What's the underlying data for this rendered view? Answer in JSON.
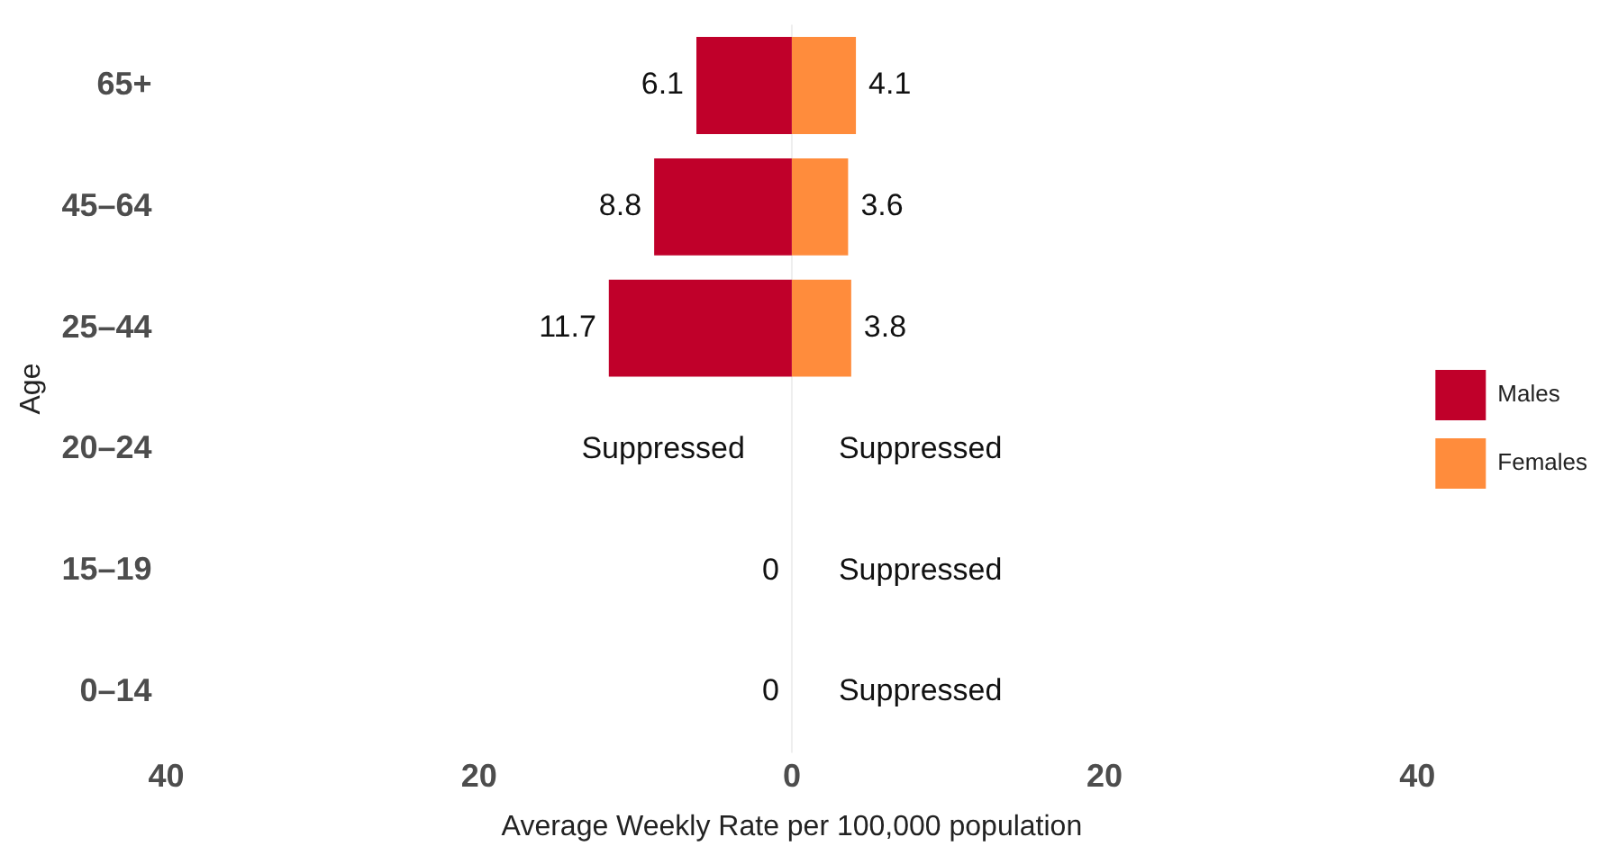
{
  "chart_data": {
    "type": "bar",
    "orientation": "horizontal",
    "xlabel": "Average Weekly Rate per 100,000 population",
    "ylabel": "Age",
    "categories": [
      "65+",
      "45–64",
      "25–44",
      "20–24",
      "15–19",
      "0–14"
    ],
    "series": [
      {
        "name": "Males",
        "color": "#c0002a",
        "base": [
          -6.1,
          -8.8,
          -11.7,
          null,
          null,
          null
        ],
        "values": [
          6.1,
          8.8,
          11.7,
          null,
          0,
          0
        ],
        "value_labels": [
          "6.1",
          "8.8",
          "11.7",
          "Suppressed",
          "0",
          "0"
        ]
      },
      {
        "name": "Females",
        "color": "#ff8c3c",
        "values": [
          4.1,
          3.6,
          3.8,
          null,
          null,
          null
        ],
        "value_labels": [
          "4.1",
          "3.6",
          "3.8",
          "Suppressed",
          "Suppressed",
          "Suppressed"
        ]
      }
    ],
    "xlim": [
      -40,
      40
    ],
    "xticks": [
      {
        "value": -40,
        "label": "40"
      },
      {
        "value": -20,
        "label": "20"
      },
      0,
      20,
      40
    ],
    "ref_lines": [
      {
        "axis": "x",
        "value": 0,
        "color": "#eeeeee"
      }
    ],
    "grid": false,
    "legend": "right"
  }
}
